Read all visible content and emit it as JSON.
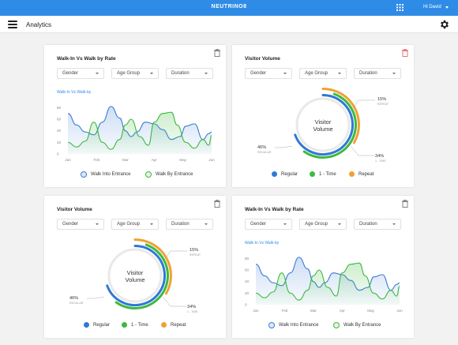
{
  "topbar": {
    "brand": "NEUTRINO8",
    "user": "Hi David",
    "accent": "#2f8ce6"
  },
  "subbar": {
    "title": "Analytics"
  },
  "filters": [
    "Gender",
    "Age Group",
    "Duration"
  ],
  "cards": [
    {
      "id": "walk-rate-1",
      "title": "Walk-In Vs Walk by Rate",
      "subtitle": "Walk-In Vs Walk-by",
      "legend": [
        "Walk Into Entrance",
        "Walk By Entrance"
      ]
    },
    {
      "id": "visitor-volume-1",
      "title": "Visitor Volume",
      "center": [
        "Visitor",
        "Volume"
      ],
      "labels": {
        "repeat_pct": "15%",
        "repeat": "REPEAT",
        "onetime_pct": "34%",
        "onetime": "1 - TIME",
        "regular_pct": "46%",
        "regular": "REGULAR"
      },
      "legend": [
        "Regular",
        "1 - Time",
        "Repeat"
      ]
    },
    {
      "id": "visitor-volume-2",
      "title": "Visitor Volume",
      "center": [
        "Visitor",
        "Volume"
      ],
      "labels": {
        "repeat_pct": "15%",
        "repeat": "REPEAT",
        "onetime_pct": "34%",
        "onetime": "1 - TIME",
        "regular_pct": "46%",
        "regular": "REGULAR"
      },
      "legend": [
        "Regular",
        "1 - Time",
        "Repeat"
      ]
    },
    {
      "id": "walk-rate-2",
      "title": "Walk-In Vs Walk by Rate",
      "subtitle": "Walk-In Vs Walk-by",
      "legend": [
        "Walk Into Entrance",
        "Walk By Entrance"
      ]
    }
  ],
  "chart_data": [
    {
      "type": "area",
      "x": [
        "Jan",
        "Feb",
        "Mar",
        "Apr",
        "May",
        "Jun"
      ],
      "yticks": [
        0,
        20,
        40,
        60,
        80
      ],
      "ylim": [
        0,
        90
      ],
      "series": [
        {
          "name": "Walk Into Entrance",
          "color": "#3a7bd5",
          "points": [
            [
              0,
              70
            ],
            [
              0.3,
              50
            ],
            [
              0.6,
              38
            ],
            [
              0.9,
              33
            ],
            [
              1.2,
              55
            ],
            [
              1.5,
              82
            ],
            [
              1.8,
              62
            ],
            [
              2.0,
              40
            ],
            [
              2.2,
              30
            ],
            [
              2.4,
              38
            ],
            [
              2.7,
              55
            ],
            [
              3.0,
              52
            ],
            [
              3.3,
              42
            ],
            [
              3.6,
              25
            ],
            [
              3.9,
              30
            ],
            [
              4.1,
              48
            ],
            [
              4.4,
              52
            ],
            [
              4.7,
              25
            ],
            [
              4.9,
              35
            ],
            [
              5.0,
              38
            ]
          ]
        },
        {
          "name": "Walk By Entrance",
          "color": "#3cba3c",
          "points": [
            [
              0,
              20
            ],
            [
              0.3,
              12
            ],
            [
              0.6,
              22
            ],
            [
              0.9,
              55
            ],
            [
              1.2,
              20
            ],
            [
              1.5,
              8
            ],
            [
              1.8,
              25
            ],
            [
              2.0,
              50
            ],
            [
              2.2,
              60
            ],
            [
              2.5,
              30
            ],
            [
              2.8,
              15
            ],
            [
              3.0,
              55
            ],
            [
              3.3,
              70
            ],
            [
              3.6,
              72
            ],
            [
              3.8,
              50
            ],
            [
              4.1,
              20
            ],
            [
              4.4,
              10
            ],
            [
              4.7,
              25
            ],
            [
              4.9,
              15
            ],
            [
              5.0,
              32
            ]
          ]
        }
      ]
    },
    {
      "type": "pie",
      "slices": [
        {
          "name": "Regular",
          "value": 46,
          "color": "#2f79d6"
        },
        {
          "name": "1 - Time",
          "value": 34,
          "color": "#3cba3c"
        },
        {
          "name": "Repeat",
          "value": 15,
          "color": "#f0a134"
        }
      ]
    }
  ]
}
